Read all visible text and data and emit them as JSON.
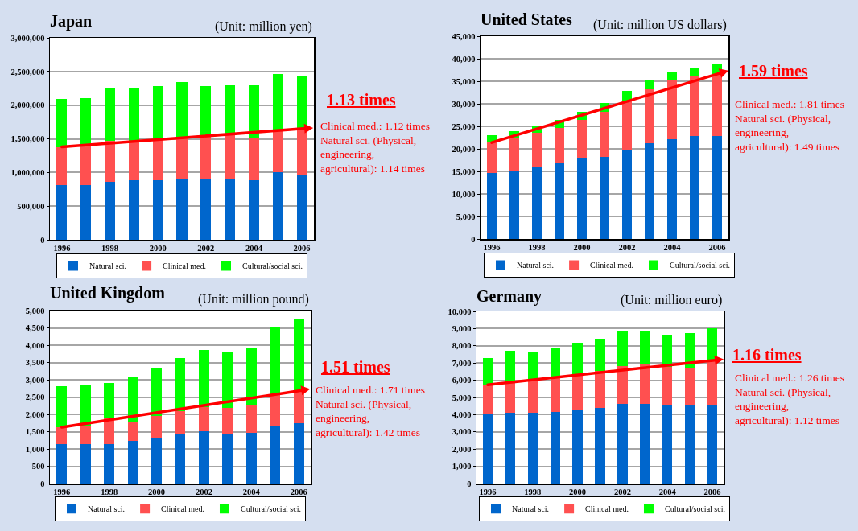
{
  "chart_data": [
    {
      "type": "bar",
      "stacked": true,
      "title": "Japan",
      "subtitle": "(Unit: million yen)",
      "x": [
        1996,
        1997,
        1998,
        1999,
        2000,
        2001,
        2002,
        2003,
        2004,
        2005,
        2006
      ],
      "xlim": [
        1995.5,
        2006.5
      ],
      "xticks": [
        1996,
        1998,
        2000,
        2002,
        2004,
        2006
      ],
      "series": [
        {
          "name": "Natural sci.",
          "color": "#0066cc",
          "values": [
            810000,
            810000,
            860000,
            880000,
            890000,
            900000,
            910000,
            910000,
            890000,
            1000000,
            960000
          ]
        },
        {
          "name": "Clinical med.",
          "color": "#ff5050",
          "values": [
            570000,
            600000,
            610000,
            570000,
            590000,
            620000,
            630000,
            650000,
            630000,
            640000,
            690000
          ]
        },
        {
          "name": "Cultural/social sci.",
          "color": "#00ff00",
          "values": [
            710000,
            690000,
            790000,
            810000,
            800000,
            820000,
            740000,
            740000,
            780000,
            820000,
            790000
          ]
        }
      ],
      "ylim": [
        0,
        3000000
      ],
      "yticks": [
        {
          "value": 0,
          "label": "0"
        },
        {
          "value": 500000,
          "label": "500,000"
        },
        {
          "value": 1000000,
          "label": "1,000,000"
        },
        {
          "value": 1500000,
          "label": "1,500,000"
        },
        {
          "value": 2000000,
          "label": "2,000,000"
        },
        {
          "value": 2500000,
          "label": "2,500,000"
        },
        {
          "value": 3000000,
          "label": "3,000,000"
        }
      ],
      "grid": "y",
      "legend": "bottom",
      "annotations": [
        "1.13 times",
        "Clinical med.: 1.12 times",
        "Natural sci. (Physical, engineering, agricultural): 1.14 times"
      ]
    },
    {
      "type": "bar",
      "stacked": true,
      "title": "United States",
      "subtitle": "(Unit: million US dollars)",
      "x": [
        1996,
        1997,
        1998,
        1999,
        2000,
        2001,
        2002,
        2003,
        2004,
        2005,
        2006
      ],
      "xlim": [
        1995.5,
        2006.5
      ],
      "xticks": [
        1996,
        1998,
        2000,
        2002,
        2004,
        2006
      ],
      "series": [
        {
          "name": "Natural sci.",
          "color": "#0066cc",
          "values": [
            14600,
            15200,
            15900,
            16700,
            17800,
            18200,
            19900,
            21300,
            22200,
            22900,
            22900
          ]
        },
        {
          "name": "Clinical med.",
          "color": "#ff5050",
          "values": [
            6800,
            7100,
            7700,
            8000,
            8700,
            10100,
            10900,
            12000,
            12900,
            13100,
            13700
          ]
        },
        {
          "name": "Cultural/social sci.",
          "color": "#00ff00",
          "values": [
            1700,
            1700,
            1600,
            1800,
            1800,
            1900,
            2100,
            2100,
            2100,
            2100,
            2100
          ]
        }
      ],
      "ylim": [
        0,
        45000
      ],
      "yticks": [
        {
          "value": 0,
          "label": "0"
        },
        {
          "value": 5000,
          "label": "5,000"
        },
        {
          "value": 10000,
          "label": "10,000"
        },
        {
          "value": 15000,
          "label": "15,000"
        },
        {
          "value": 20000,
          "label": "20,000"
        },
        {
          "value": 25000,
          "label": "25,000"
        },
        {
          "value": 30000,
          "label": "30,000"
        },
        {
          "value": 35000,
          "label": "35,000"
        },
        {
          "value": 40000,
          "label": "40,000"
        },
        {
          "value": 45000,
          "label": "45,000"
        }
      ],
      "grid": "y",
      "legend": "bottom",
      "annotations": [
        "1.59 times",
        "Clinical med.: 1.81 times",
        "Natural sci. (Physical, engineering, agricultural): 1.49 times"
      ]
    },
    {
      "type": "bar",
      "stacked": true,
      "title": "United Kingdom",
      "subtitle": "(Unit: million pound)",
      "x": [
        1996,
        1997,
        1998,
        1999,
        2000,
        2001,
        2002,
        2003,
        2004,
        2005,
        2006
      ],
      "xlim": [
        1995.5,
        2006.5
      ],
      "xticks": [
        1996,
        1998,
        2000,
        2002,
        2004,
        2006
      ],
      "series": [
        {
          "name": "Natural sci.",
          "color": "#0066cc",
          "values": [
            1150,
            1150,
            1150,
            1230,
            1320,
            1420,
            1510,
            1420,
            1460,
            1670,
            1740
          ]
        },
        {
          "name": "Clinical med.",
          "color": "#ff5050",
          "values": [
            480,
            510,
            740,
            560,
            630,
            670,
            700,
            760,
            790,
            890,
            940
          ]
        },
        {
          "name": "Cultural/social sci.",
          "color": "#00ff00",
          "values": [
            1180,
            1190,
            1020,
            1310,
            1400,
            1540,
            1650,
            1600,
            1690,
            1960,
            2080
          ]
        }
      ],
      "ylim": [
        0,
        5000
      ],
      "yticks": [
        {
          "value": 0,
          "label": "0"
        },
        {
          "value": 500,
          "label": "500"
        },
        {
          "value": 1000,
          "label": "1,000"
        },
        {
          "value": 1500,
          "label": "1,500"
        },
        {
          "value": 2000,
          "label": "2,000"
        },
        {
          "value": 2500,
          "label": "2,500"
        },
        {
          "value": 3000,
          "label": "3,000"
        },
        {
          "value": 3500,
          "label": "3,500"
        },
        {
          "value": 4000,
          "label": "4,000"
        },
        {
          "value": 4500,
          "label": "4,500"
        },
        {
          "value": 5000,
          "label": "5,000"
        }
      ],
      "grid": "y",
      "legend": "bottom",
      "annotations": [
        "1.51 times",
        "Clinical med.: 1.71 times",
        "Natural sci. (Physical, engineering, agricultural): 1.42 times"
      ]
    },
    {
      "type": "bar",
      "stacked": true,
      "title": "Germany",
      "subtitle": "(Unit: million euro)",
      "x": [
        1996,
        1997,
        1998,
        1999,
        2000,
        2001,
        2002,
        2003,
        2004,
        2005,
        2006
      ],
      "xlim": [
        1995.5,
        2006.5
      ],
      "xticks": [
        1996,
        1998,
        2000,
        2002,
        2004,
        2006
      ],
      "series": [
        {
          "name": "Natural sci.",
          "color": "#0066cc",
          "values": [
            4010,
            4090,
            4130,
            4180,
            4300,
            4390,
            4640,
            4640,
            4600,
            4550,
            4600
          ]
        },
        {
          "name": "Clinical med.",
          "color": "#ff5050",
          "values": [
            1730,
            1820,
            1890,
            1920,
            2030,
            2130,
            2200,
            2340,
            2190,
            2200,
            2550
          ]
        },
        {
          "name": "Cultural/social sci.",
          "color": "#00ff00",
          "values": [
            1540,
            1790,
            1590,
            1810,
            1830,
            1890,
            1990,
            1890,
            1870,
            1990,
            1860
          ]
        }
      ],
      "ylim": [
        0,
        10000
      ],
      "yticks": [
        {
          "value": 0,
          "label": "0"
        },
        {
          "value": 1000,
          "label": "1,000"
        },
        {
          "value": 2000,
          "label": "2,000"
        },
        {
          "value": 3000,
          "label": "3,000"
        },
        {
          "value": 4000,
          "label": "4,000"
        },
        {
          "value": 5000,
          "label": "5,000"
        },
        {
          "value": 6000,
          "label": "6,000"
        },
        {
          "value": 7000,
          "label": "7,000"
        },
        {
          "value": 8000,
          "label": "8,000"
        },
        {
          "value": 9000,
          "label": "9,000"
        },
        {
          "value": 10000,
          "label": "10,000"
        }
      ],
      "grid": "y",
      "legend": "bottom",
      "annotations": [
        "1.16 times",
        "Clinical med.: 1.26 times",
        "Natural sci. (Physical, engineering, agricultural): 1.12 times"
      ]
    }
  ]
}
